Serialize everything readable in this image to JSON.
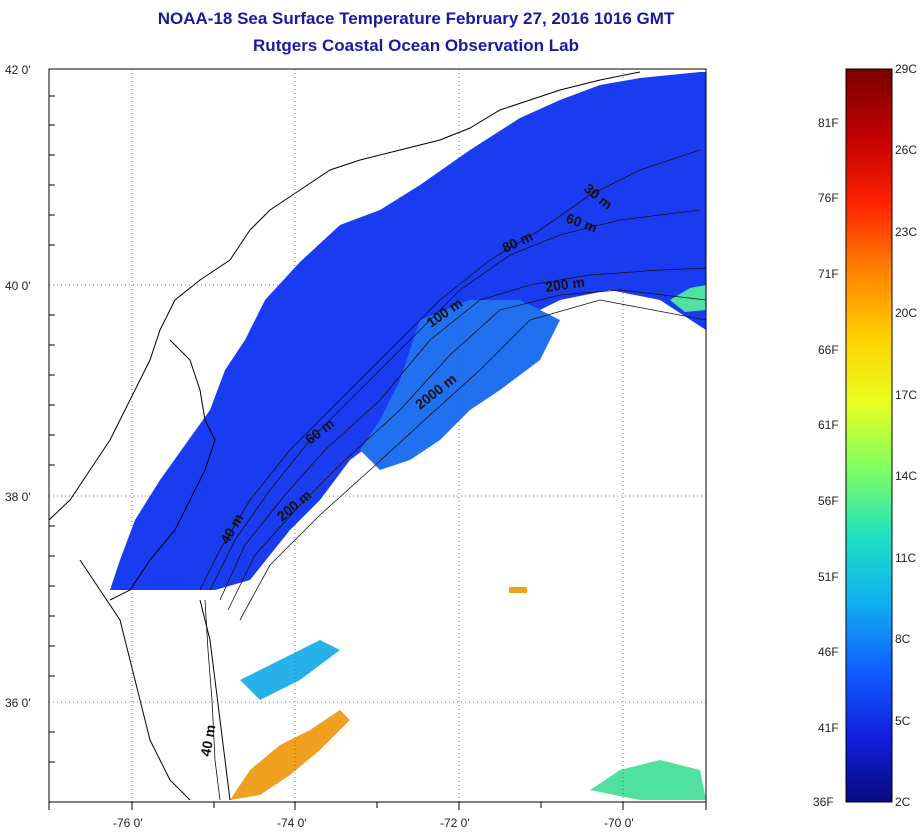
{
  "title": {
    "line1": "NOAA-18 Sea Surface Temperature February 27, 2016 1016 GMT",
    "line2": "Rutgers Coastal Ocean Observation Lab"
  },
  "map": {
    "lat_labels": [
      "42 0'",
      "40 0'",
      "38 0'",
      "36 0'"
    ],
    "lon_labels": [
      "-76 0'",
      "-74 0'",
      "-72 0'",
      "-70 0'"
    ],
    "lat_range": [
      35,
      42
    ],
    "lon_range": [
      -77,
      -69
    ],
    "depth_contour_labels": [
      "30 m",
      "60 m",
      "80 m",
      "200 m",
      "100 m",
      "2000 m",
      "60 m",
      "200 m",
      "40 m",
      "40 m"
    ]
  },
  "colorbar": {
    "celsius_labels": [
      "29C",
      "26C",
      "23C",
      "20C",
      "17C",
      "14C",
      "11C",
      "8C",
      "5C",
      "2C"
    ],
    "fahrenheit_labels": [
      "81F",
      "76F",
      "71F",
      "66F",
      "61F",
      "56F",
      "51F",
      "46F",
      "41F",
      "36F"
    ],
    "colors": [
      "#7a0000",
      "#c00000",
      "#ff2000",
      "#ff8000",
      "#ffd000",
      "#e8ff20",
      "#80ff60",
      "#20e0c0",
      "#10b0f0",
      "#1060ff",
      "#1020e0",
      "#0a0a80"
    ]
  },
  "sst_colors": {
    "cold": "#1a3cf0",
    "cool": "#2070f0",
    "mid": "#28b0e8",
    "warm": "#50e0a0",
    "hot": "#f0a020"
  }
}
